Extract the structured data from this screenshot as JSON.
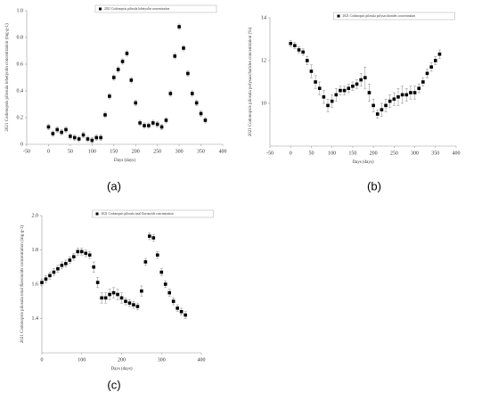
{
  "chart_data": [
    {
      "type": "scatter",
      "panel_label": "(a)",
      "xlabel": "Days (days)",
      "ylabel": "2021 Codonopsis pilosula lobetyolin concentration (mg·g-1)",
      "x": [
        0,
        10,
        20,
        30,
        40,
        50,
        60,
        70,
        80,
        90,
        100,
        110,
        120,
        130,
        140,
        150,
        160,
        170,
        180,
        190,
        200,
        210,
        220,
        230,
        240,
        250,
        260,
        270,
        280,
        290,
        300,
        310,
        320,
        330,
        340,
        350,
        360
      ],
      "series": [
        {
          "name": "2021 Codonopsis pilosula lobetyolin concentration",
          "color": "#000000",
          "values": [
            0.13,
            0.08,
            0.11,
            0.09,
            0.11,
            0.06,
            0.05,
            0.04,
            0.07,
            0.04,
            0.03,
            0.05,
            0.05,
            0.22,
            0.36,
            0.5,
            0.56,
            0.62,
            0.68,
            0.48,
            0.31,
            0.16,
            0.14,
            0.14,
            0.16,
            0.15,
            0.13,
            0.18,
            0.38,
            0.66,
            0.88,
            0.72,
            0.53,
            0.38,
            0.31,
            0.23,
            0.18
          ],
          "errors": [
            0.02,
            0.02,
            0.02,
            0.02,
            0.02,
            0.02,
            0.02,
            0.02,
            0.02,
            0.02,
            0.02,
            0.02,
            0.02,
            0.02,
            0.02,
            0.02,
            0.02,
            0.02,
            0.02,
            0.02,
            0.02,
            0.02,
            0.02,
            0.02,
            0.02,
            0.02,
            0.02,
            0.02,
            0.02,
            0.02,
            0.02,
            0.02,
            0.02,
            0.02,
            0.02,
            0.02,
            0.02
          ]
        }
      ],
      "xlim": [
        -50,
        400
      ],
      "xticks": [
        -50,
        0,
        50,
        100,
        150,
        200,
        250,
        300,
        350,
        400
      ],
      "ylim": [
        0,
        1
      ],
      "yticks": [
        0,
        {
          "value": 0.2,
          "label": "0.2"
        },
        {
          "value": 0.4,
          "label": "0.4"
        },
        {
          "value": 0.6,
          "label": "0.6"
        },
        {
          "value": 0.8,
          "label": "0.8"
        },
        {
          "value": 1,
          "label": "1.0"
        }
      ]
    },
    {
      "type": "scatter",
      "panel_label": "(b)",
      "xlabel": "Days (days)",
      "ylabel": "2021 Codonopsis pilosula polysaccharides concentration (%)",
      "x": [
        0,
        10,
        20,
        30,
        40,
        50,
        60,
        70,
        80,
        90,
        100,
        110,
        120,
        130,
        140,
        150,
        160,
        170,
        180,
        190,
        200,
        210,
        220,
        230,
        240,
        250,
        260,
        270,
        280,
        290,
        300,
        310,
        320,
        330,
        340,
        350,
        360
      ],
      "series": [
        {
          "name": "2021 Codonopsis pilosula polysaccharides concentration",
          "color": "#000000",
          "values": [
            12.8,
            12.7,
            12.5,
            12.4,
            12,
            11.5,
            11,
            10.7,
            10.3,
            9.9,
            10.1,
            10.4,
            10.6,
            10.6,
            10.7,
            10.8,
            10.9,
            11.1,
            11.2,
            10.5,
            9.9,
            9.5,
            9.7,
            9.9,
            10.1,
            10.2,
            10.3,
            10.4,
            10.4,
            10.5,
            10.5,
            10.7,
            11,
            11.4,
            11.7,
            12,
            12.3
          ],
          "errors": [
            0.15,
            0.15,
            0.15,
            0.15,
            0.2,
            0.3,
            0.3,
            0.3,
            0.3,
            0.3,
            0.3,
            0.3,
            0.2,
            0.2,
            0.2,
            0.2,
            0.2,
            0.3,
            0.5,
            0.4,
            0.3,
            0.2,
            0.3,
            0.3,
            0.3,
            0.3,
            0.4,
            0.4,
            0.3,
            0.3,
            0.3,
            0.2,
            0.2,
            0.2,
            0.2,
            0.2,
            0.2
          ]
        }
      ],
      "xlim": [
        -50,
        400
      ],
      "xticks": [
        -50,
        0,
        50,
        100,
        150,
        200,
        250,
        300,
        350,
        400
      ],
      "ylim": [
        8,
        14
      ],
      "yticks": [
        10,
        12,
        14
      ]
    },
    {
      "type": "scatter",
      "panel_label": "(c)",
      "xlabel": "Days (days)",
      "ylabel": "2021 Codonopsis pilosula total flavonoids concentration (mg·g-1)",
      "x": [
        0,
        10,
        20,
        30,
        40,
        50,
        60,
        70,
        80,
        90,
        100,
        110,
        120,
        130,
        140,
        150,
        160,
        170,
        180,
        190,
        200,
        210,
        220,
        230,
        240,
        250,
        260,
        270,
        280,
        290,
        300,
        310,
        320,
        330,
        340,
        350,
        360
      ],
      "series": [
        {
          "name": "2021 Codonopsis pilosula total flavonoids concentration",
          "color": "#000000",
          "values": [
            1.61,
            1.63,
            1.65,
            1.67,
            1.69,
            1.71,
            1.72,
            1.74,
            1.76,
            1.79,
            1.79,
            1.78,
            1.77,
            1.7,
            1.61,
            1.52,
            1.52,
            1.54,
            1.55,
            1.54,
            1.52,
            1.5,
            1.49,
            1.48,
            1.47,
            1.56,
            1.73,
            1.88,
            1.87,
            1.77,
            1.67,
            1.6,
            1.55,
            1.5,
            1.46,
            1.44,
            1.42
          ],
          "errors": [
            0.02,
            0.02,
            0.02,
            0.02,
            0.02,
            0.02,
            0.02,
            0.02,
            0.02,
            0.02,
            0.02,
            0.02,
            0.02,
            0.03,
            0.03,
            0.03,
            0.03,
            0.03,
            0.03,
            0.03,
            0.03,
            0.02,
            0.02,
            0.02,
            0.02,
            0.03,
            0.02,
            0.02,
            0.02,
            0.02,
            0.02,
            0.02,
            0.02,
            0.02,
            0.02,
            0.02,
            0.02
          ]
        }
      ],
      "xlim": [
        0,
        400
      ],
      "xticks": [
        0,
        100,
        200,
        300,
        400
      ],
      "ylim": [
        1.2,
        2
      ],
      "yticks": [
        {
          "value": 1.4,
          "label": "1.4"
        },
        {
          "value": 1.6,
          "label": "1.6"
        },
        {
          "value": 1.8,
          "label": "1.8"
        },
        {
          "value": 2,
          "label": "2.0"
        }
      ]
    }
  ]
}
